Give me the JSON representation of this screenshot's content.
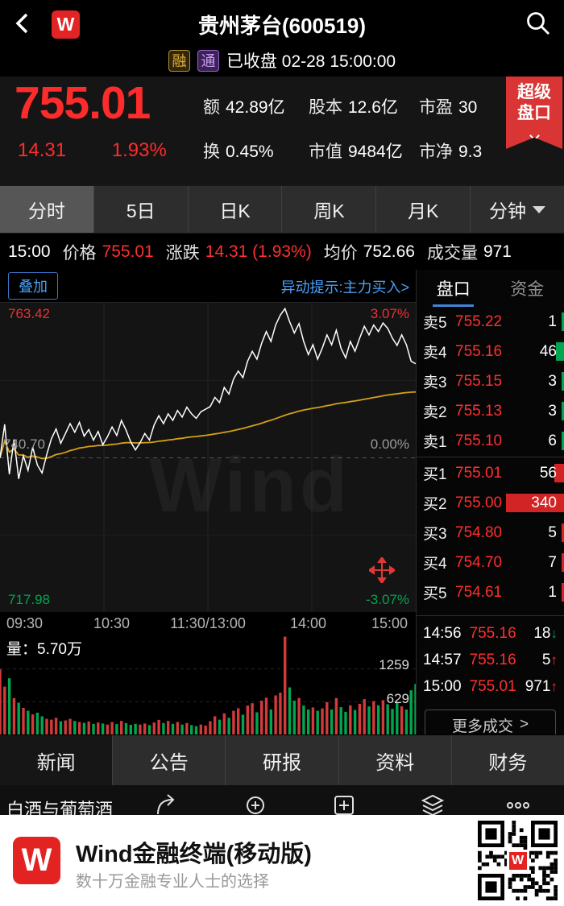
{
  "colors": {
    "red": "#d43a3a",
    "green": "#00a650",
    "blue": "#4aa0f6",
    "yellow": "#d4a017"
  },
  "header": {
    "title": "贵州茅台(600519)",
    "badge_rong": "融",
    "badge_tong": "通",
    "status": "已收盘 02-28 15:00:00"
  },
  "ribbon": {
    "line1": "超级",
    "line2": "盘口"
  },
  "quote": {
    "price": "755.01",
    "change": "14.31",
    "change_pct": "1.93%",
    "stats": [
      {
        "label": "额",
        "value": "42.89亿"
      },
      {
        "label": "股本",
        "value": "12.6亿"
      },
      {
        "label": "市盈",
        "value": "30"
      },
      {
        "label": "换",
        "value": "0.45%"
      },
      {
        "label": "市值",
        "value": "9484亿"
      },
      {
        "label": "市净",
        "value": "9.3"
      }
    ]
  },
  "period_tabs": [
    "分时",
    "5日",
    "日K",
    "周K",
    "月K",
    "分钟"
  ],
  "info_line": {
    "time": "15:00",
    "price_label": "价格",
    "price": "755.01",
    "change_label": "涨跌",
    "change": "14.31 (1.93%)",
    "avg_label": "均价",
    "avg": "752.66",
    "vol_label": "成交量",
    "vol": "971"
  },
  "chart_tools": {
    "overlay": "叠加",
    "alert": "异动提示:主力买入>"
  },
  "chart_data": {
    "type": "line",
    "y_labels": {
      "high": "763.42",
      "mid": "740.70",
      "low": "717.98"
    },
    "pct_labels": {
      "high": "3.07%",
      "mid": "0.00%",
      "low": "-3.07%"
    },
    "x_ticks": [
      "09:30",
      "10:30",
      "11:30/13:00",
      "14:00",
      "15:00"
    ],
    "price_range": [
      717.98,
      763.42
    ],
    "prev_close": 740.7,
    "prices": [
      740.7,
      745.8,
      738.2,
      743.5,
      737.5,
      741.0,
      738.8,
      742.3,
      739.6,
      738.4,
      741.2,
      743.6,
      745.1,
      742.9,
      744.4,
      745.9,
      744.6,
      746.1,
      744.0,
      745.0,
      743.4,
      744.7,
      742.7,
      743.9,
      745.4,
      744.1,
      746.4,
      744.9,
      743.1,
      741.9,
      743.0,
      744.4,
      743.4,
      745.7,
      747.1,
      745.9,
      747.4,
      746.4,
      747.9,
      746.9,
      748.4,
      747.4,
      746.7,
      747.7,
      748.1,
      748.5,
      749.9,
      749.1,
      751.4,
      750.4,
      752.7,
      753.9,
      752.9,
      755.4,
      756.9,
      755.7,
      758.1,
      759.9,
      758.4,
      760.9,
      762.4,
      763.4,
      761.4,
      759.7,
      761.1,
      758.4,
      756.4,
      757.9,
      755.7,
      757.4,
      759.4,
      757.9,
      760.1,
      757.4,
      755.9,
      758.4,
      756.9,
      758.9,
      760.7,
      759.4,
      760.9,
      759.9,
      761.2,
      760.4,
      758.9,
      757.8,
      759.4,
      757.9,
      755.4,
      755.01
    ],
    "volumes": [
      1250,
      920,
      1080,
      700,
      610,
      510,
      455,
      385,
      420,
      350,
      300,
      285,
      320,
      255,
      270,
      300,
      260,
      240,
      225,
      250,
      205,
      230,
      210,
      190,
      240,
      200,
      260,
      220,
      185,
      205,
      190,
      210,
      180,
      230,
      280,
      220,
      260,
      205,
      240,
      190,
      220,
      180,
      160,
      190,
      170,
      255,
      350,
      285,
      405,
      320,
      455,
      505,
      380,
      555,
      600,
      425,
      650,
      705,
      480,
      750,
      805,
      1880,
      905,
      650,
      700,
      555,
      480,
      520,
      455,
      500,
      620,
      480,
      700,
      525,
      435,
      560,
      470,
      590,
      680,
      540,
      640,
      560,
      660,
      580,
      490,
      625,
      540,
      480,
      850,
      971
    ],
    "volume_max": 1888,
    "volume_tick_values": [
      1259,
      629
    ],
    "volume_ticks": [
      "1259",
      "629"
    ],
    "volume_label": "量：5.70万"
  },
  "order_book": {
    "tabs": [
      "盘口",
      "资金"
    ],
    "asks": [
      {
        "label": "卖5",
        "price": "755.22",
        "qty": "1"
      },
      {
        "label": "卖4",
        "price": "755.16",
        "qty": "46"
      },
      {
        "label": "卖3",
        "price": "755.15",
        "qty": "3"
      },
      {
        "label": "卖2",
        "price": "755.13",
        "qty": "3"
      },
      {
        "label": "卖1",
        "price": "755.10",
        "qty": "6"
      }
    ],
    "bids": [
      {
        "label": "买1",
        "price": "755.01",
        "qty": "56"
      },
      {
        "label": "买2",
        "price": "755.00",
        "qty": "340"
      },
      {
        "label": "买3",
        "price": "754.80",
        "qty": "5"
      },
      {
        "label": "买4",
        "price": "754.70",
        "qty": "7"
      },
      {
        "label": "买5",
        "price": "754.61",
        "qty": "1"
      }
    ],
    "trades": [
      {
        "time": "14:56",
        "price": "755.16",
        "qty": "18",
        "dir": "↓",
        "trend": "down"
      },
      {
        "time": "14:57",
        "price": "755.16",
        "qty": "5",
        "dir": "↑",
        "trend": "up"
      },
      {
        "time": "15:00",
        "price": "755.01",
        "qty": "971",
        "dir": "↑",
        "trend": "up"
      }
    ],
    "more_label": "更多成交",
    "more_arrow": ">"
  },
  "bottom_tabs": [
    "新闻",
    "公告",
    "研报",
    "资料",
    "财务"
  ],
  "icon_strip": {
    "ticker": "白酒与葡萄酒"
  },
  "banner": {
    "title": "Wind金融终端(移动版)",
    "subtitle": "数十万金融专业人士的选择"
  },
  "watermark": "Wind"
}
